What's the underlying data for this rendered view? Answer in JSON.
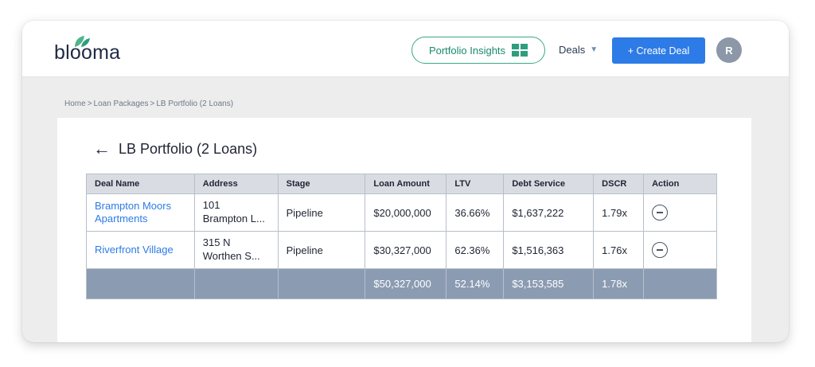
{
  "app": {
    "logo_text": "blooma"
  },
  "header": {
    "insights_label": "Portfolio Insights",
    "deals_label": "Deals",
    "create_label": "+ Create Deal",
    "avatar_initial": "R"
  },
  "breadcrumb": [
    "Home",
    "Loan Packages",
    "LB Portfolio (2 Loans)"
  ],
  "page": {
    "title": "LB Portfolio (2 Loans)"
  },
  "table": {
    "columns": [
      "Deal Name",
      "Address",
      "Stage",
      "Loan Amount",
      "LTV",
      "Debt Service",
      "DSCR",
      "Action"
    ],
    "rows": [
      {
        "deal_name": "Brampton Moors Apartments",
        "address_line1": "101",
        "address_line2": "Brampton L...",
        "stage": "Pipeline",
        "loan_amount": "$20,000,000",
        "ltv": "36.66%",
        "debt_service": "$1,637,222",
        "dscr": "1.79x"
      },
      {
        "deal_name": "Riverfront Village",
        "address_line1": "315 N",
        "address_line2": "Worthen S...",
        "stage": "Pipeline",
        "loan_amount": "$30,327,000",
        "ltv": "62.36%",
        "debt_service": "$1,516,363",
        "dscr": "1.76x"
      }
    ],
    "total": {
      "loan_amount": "$50,327,000",
      "ltv": "52.14%",
      "debt_service": "$3,153,585",
      "dscr": "1.78x"
    }
  },
  "colors": {
    "accent": "#2d7be6",
    "brand_green": "#3aa886",
    "total_row": "#8b9bb2"
  },
  "icons": [
    "leaf-icon",
    "grid-icon",
    "caret-down-icon",
    "back-arrow-icon",
    "minus-circle-icon"
  ]
}
